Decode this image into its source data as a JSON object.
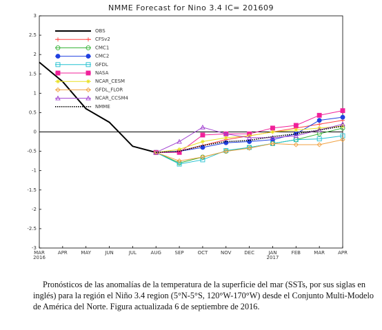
{
  "chart_data": {
    "type": "line",
    "title": "NMME Forecast for Nino 3.4  IC= 201609",
    "categories": [
      "MAR 2016",
      "APR",
      "MAY",
      "JUN",
      "JUL",
      "AUG",
      "SEP",
      "OCT",
      "NOV",
      "DEC",
      "JAN 2017",
      "FEB",
      "MAR",
      "APR"
    ],
    "ylim": [
      -3,
      3
    ],
    "yticks": [
      -3,
      -2.5,
      -2,
      -1.5,
      -1,
      -0.5,
      0,
      0.5,
      1,
      1.5,
      2,
      2.5,
      3
    ],
    "series": [
      {
        "name": "OBS",
        "color": "#000000",
        "marker": "none",
        "dash": "solid",
        "width": 2,
        "values": [
          1.8,
          1.3,
          0.6,
          0.25,
          -0.37,
          -0.53,
          null,
          null,
          null,
          null,
          null,
          null,
          null,
          null
        ]
      },
      {
        "name": "CFSv2",
        "color": "#ff4040",
        "marker": "plus",
        "dash": "solid",
        "width": 1,
        "values": [
          null,
          null,
          null,
          null,
          null,
          -0.53,
          -0.5,
          -0.35,
          -0.2,
          -0.1,
          0.0,
          0.1,
          0.2,
          0.3
        ]
      },
      {
        "name": "CMC1",
        "color": "#30b030",
        "marker": "circle-open",
        "dash": "solid",
        "width": 1,
        "values": [
          null,
          null,
          null,
          null,
          null,
          -0.53,
          -0.8,
          -0.65,
          -0.5,
          -0.4,
          -0.3,
          -0.2,
          -0.05,
          0.1
        ]
      },
      {
        "name": "CMC2",
        "color": "#2040e0",
        "marker": "circle-filled",
        "dash": "solid",
        "width": 1,
        "values": [
          null,
          null,
          null,
          null,
          null,
          -0.53,
          -0.5,
          -0.4,
          -0.28,
          -0.25,
          -0.2,
          -0.05,
          0.3,
          0.38
        ]
      },
      {
        "name": "GFDL",
        "color": "#20c0d0",
        "marker": "square-open",
        "dash": "solid",
        "width": 1,
        "values": [
          null,
          null,
          null,
          null,
          null,
          -0.53,
          -0.83,
          -0.72,
          -0.48,
          -0.4,
          -0.3,
          -0.2,
          -0.18,
          -0.1
        ]
      },
      {
        "name": "NASA",
        "color": "#f0209a",
        "marker": "square-filled",
        "dash": "solid",
        "width": 1,
        "values": [
          null,
          null,
          null,
          null,
          null,
          -0.53,
          -0.53,
          -0.08,
          -0.05,
          -0.05,
          0.1,
          0.17,
          0.43,
          0.55
        ]
      },
      {
        "name": "NCAR_CESM",
        "color": "#e8e020",
        "marker": "star",
        "dash": "solid",
        "width": 1,
        "values": [
          null,
          null,
          null,
          null,
          null,
          -0.53,
          -0.45,
          -0.25,
          -0.15,
          -0.1,
          0.0,
          0.05,
          0.1,
          0.15
        ]
      },
      {
        "name": "GFDL_FLOR",
        "color": "#f0a040",
        "marker": "diamond-open",
        "dash": "solid",
        "width": 1,
        "values": [
          null,
          null,
          null,
          null,
          null,
          -0.53,
          -0.75,
          -0.65,
          -0.5,
          -0.42,
          -0.3,
          -0.33,
          -0.33,
          -0.2
        ]
      },
      {
        "name": "NCAR_CCSM4",
        "color": "#a040d0",
        "marker": "triangle-open",
        "dash": "solid",
        "width": 1,
        "values": [
          null,
          null,
          null,
          null,
          null,
          -0.53,
          -0.25,
          0.12,
          -0.05,
          -0.15,
          -0.15,
          -0.1,
          0.05,
          0.2
        ]
      },
      {
        "name": "NMME",
        "color": "#000000",
        "marker": "none",
        "dash": "dotted",
        "width": 1.6,
        "values": [
          null,
          null,
          null,
          null,
          null,
          -0.53,
          -0.5,
          -0.35,
          -0.25,
          -0.22,
          -0.12,
          -0.05,
          0.05,
          0.15
        ]
      }
    ]
  },
  "caption": "Pronósticos de las anomalías de la temperatura de la superficie del mar (SSTs, por sus siglas en inglés) para la región el Niño 3.4 region (5°N-5°S, 120°W-170°W) desde el Conjunto Multi-Modelo de América del Norte. Figura actualizada 6 de septiembre de 2016."
}
